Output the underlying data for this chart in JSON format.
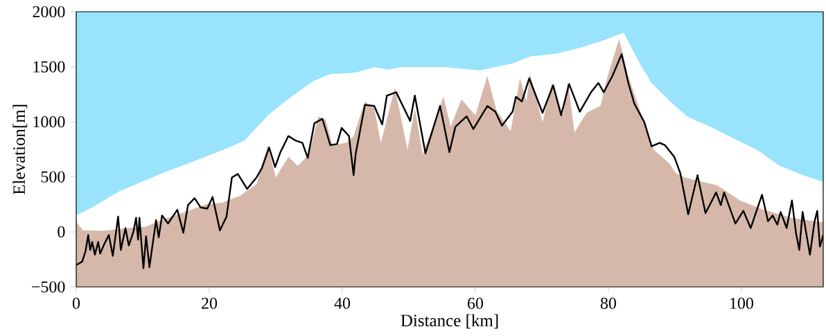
{
  "chart_data": {
    "type": "area",
    "xlabel": "Distance [km]",
    "ylabel": "Elevation[m]",
    "xlim": [
      0,
      112.3
    ],
    "ylim": [
      -500,
      2000
    ],
    "xticks": [
      0,
      20,
      40,
      60,
      80,
      100
    ],
    "yticks": [
      {
        "value": -500,
        "label": "−500"
      },
      0,
      500,
      1000,
      1500,
      2000
    ],
    "grid": false,
    "series": [
      {
        "color": "#99e3fd",
        "x": [
          0,
          2.4,
          6.4,
          12.8,
          21.9,
          25.3,
          28.8,
          32.3,
          35.7,
          38.2,
          42,
          44.8,
          46.9,
          49,
          55.2,
          60.7,
          65.6,
          68.3,
          71.9,
          75.4,
          78.8,
          82.3,
          84.8,
          86.5,
          89.3,
          91.9,
          95.3,
          98.8,
          102.3,
          105.8,
          109.3,
          112.3
        ],
        "values": [
          150,
          222,
          367,
          530,
          740,
          830,
          1058,
          1227,
          1372,
          1435,
          1447,
          1497,
          1474,
          1497,
          1497,
          1468,
          1531,
          1594,
          1615,
          1667,
          1730,
          1810,
          1521,
          1353,
          1185,
          1045,
          955,
          850,
          746,
          599,
          515,
          455
        ]
      },
      {
        "color": "#d6b8aa",
        "x": [
          0,
          0.17,
          1.04,
          4.2,
          7.6,
          10.4,
          12.8,
          16.3,
          19.7,
          21.9,
          24.6,
          27.1,
          28.8,
          30,
          31.9,
          33.3,
          35,
          36.4,
          37.5,
          38.5,
          40.6,
          41.7,
          43.4,
          44.8,
          45.8,
          47.9,
          49.8,
          50.9,
          52.1,
          55.2,
          56.3,
          57.9,
          60,
          61.8,
          63.2,
          65.3,
          66.7,
          67.7,
          68.2,
          70.1,
          71.5,
          73.2,
          73.9,
          74.9,
          76.7,
          78.8,
          79.9,
          81.6,
          83,
          85,
          86.8,
          89.2,
          90.1,
          91.5,
          96.4,
          99.8,
          103.3,
          107.5,
          112.3
        ],
        "values": [
          130,
          78,
          13,
          10,
          34,
          45,
          107,
          180,
          254,
          264,
          327,
          432,
          788,
          494,
          683,
          599,
          704,
          1050,
          1018,
          788,
          809,
          871,
          1185,
          1123,
          809,
          1311,
          746,
          1123,
          704,
          1227,
          955,
          1206,
          1060,
          1416,
          1102,
          913,
          1395,
          1185,
          1437,
          997,
          1353,
          1060,
          1374,
          903,
          1081,
          1144,
          1416,
          1751,
          1416,
          1060,
          746,
          620,
          536,
          494,
          421,
          285,
          202,
          128,
          86
        ]
      },
      {
        "type": "line",
        "color": "#000000",
        "x": [
          0,
          0.9,
          1.4,
          1.8,
          2.1,
          2.4,
          2.8,
          3.3,
          3.6,
          4.2,
          4.9,
          5.5,
          6.3,
          6.7,
          7.4,
          7.9,
          8.6,
          9.0,
          9.3,
          9.5,
          10.1,
          10.5,
          11,
          12,
          12.4,
          12.9,
          13.8,
          15.2,
          16.1,
          16.8,
          17.8,
          18.7,
          19.7,
          20.5,
          21.6,
          22.6,
          23.4,
          24.3,
          25.7,
          27.1,
          27.9,
          29,
          29.9,
          30.7,
          31.9,
          33,
          34,
          34.8,
          35.8,
          37,
          38.2,
          39.2,
          39.9,
          41,
          41.7,
          42,
          43.4,
          44.8,
          46,
          46.7,
          48.1,
          50.2,
          50.9,
          52.5,
          54.7,
          56.1,
          57,
          58.7,
          59.7,
          61.8,
          63,
          64,
          65.6,
          66.1,
          67,
          68.1,
          70.1,
          71.7,
          72.9,
          74.1,
          75.7,
          77.4,
          78.5,
          79.3,
          80.6,
          82,
          83,
          83.9,
          85.4,
          86.5,
          87.7,
          88.5,
          89.9,
          90.8,
          92,
          93.4,
          94.6,
          96.2,
          96.9,
          97.4,
          99.1,
          100.3,
          101.4,
          103.1,
          104,
          104.7,
          105.4,
          105.9,
          106.8,
          107.6,
          108.2,
          108.7,
          109.2,
          110.3,
          111,
          111.4,
          111.8,
          112.3
        ],
        "values": [
          -301,
          -270,
          -175,
          -29,
          -165,
          -92,
          -207,
          -92,
          -197,
          -113,
          -29,
          -218,
          139,
          -165,
          34,
          -124,
          2,
          128,
          -71,
          128,
          -332,
          -40,
          -321,
          107,
          -50,
          149,
          76,
          201,
          -8,
          243,
          306,
          222,
          211,
          317,
          13,
          139,
          494,
          526,
          390,
          494,
          578,
          767,
          589,
          725,
          871,
          829,
          809,
          672,
          986,
          1028,
          788,
          798,
          944,
          871,
          515,
          704,
          1154,
          1144,
          976,
          1238,
          1269,
          1008,
          1238,
          714,
          1144,
          725,
          955,
          1050,
          934,
          1144,
          1092,
          965,
          1092,
          1227,
          1185,
          1395,
          1081,
          1332,
          1060,
          1343,
          1092,
          1269,
          1353,
          1269,
          1416,
          1615,
          1353,
          1165,
          997,
          777,
          809,
          788,
          683,
          536,
          160,
          515,
          170,
          358,
          243,
          358,
          76,
          191,
          34,
          337,
          97,
          149,
          65,
          181,
          34,
          285,
          -8,
          -165,
          181,
          -207,
          97,
          191,
          -134,
          -29
        ]
      }
    ]
  }
}
